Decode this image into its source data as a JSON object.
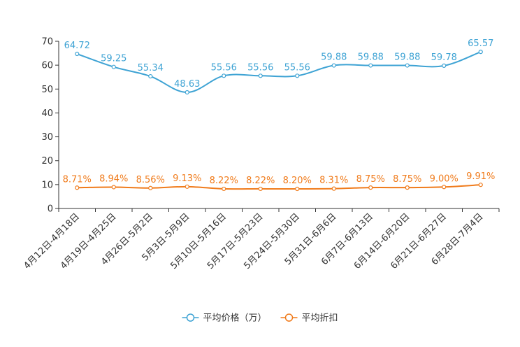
{
  "chart_data": {
    "type": "line",
    "title": "",
    "xlabel": "",
    "ylabel": "",
    "ylim": [
      0,
      70
    ],
    "yticks": [
      0,
      10,
      20,
      30,
      40,
      50,
      60,
      70
    ],
    "grid": false,
    "legend_position": "bottom",
    "categories": [
      "4月12日-4月18日",
      "4月19日-4月25日",
      "4月26日-5月2日",
      "5月3日-5月9日",
      "5月10日-5月16日",
      "5月17日-5月23日",
      "5月24日-5月30日",
      "5月31日-6月6日",
      "6月7日-6月13日",
      "6月14日-6月20日",
      "6月21日-6月27日",
      "6月28日-7月4日"
    ],
    "series": [
      {
        "name": "平均价格（万）",
        "color": "#3ea3d4",
        "values": [
          64.72,
          59.25,
          55.34,
          48.63,
          55.56,
          55.56,
          55.56,
          59.88,
          59.88,
          59.88,
          59.78,
          65.57
        ],
        "labels": [
          "64.72",
          "59.25",
          "55.34",
          "48.63",
          "55.56",
          "55.56",
          "55.56",
          "59.88",
          "59.88",
          "59.88",
          "59.78",
          "65.57"
        ]
      },
      {
        "name": "平均折扣",
        "color": "#f07b1b",
        "values": [
          8.71,
          8.94,
          8.56,
          9.13,
          8.22,
          8.22,
          8.2,
          8.31,
          8.75,
          8.75,
          9.0,
          9.91
        ],
        "labels": [
          "8.71%",
          "8.94%",
          "8.56%",
          "9.13%",
          "8.22%",
          "8.22%",
          "8.20%",
          "8.31%",
          "8.75%",
          "8.75%",
          "9.00%",
          "9.91%"
        ]
      }
    ]
  }
}
